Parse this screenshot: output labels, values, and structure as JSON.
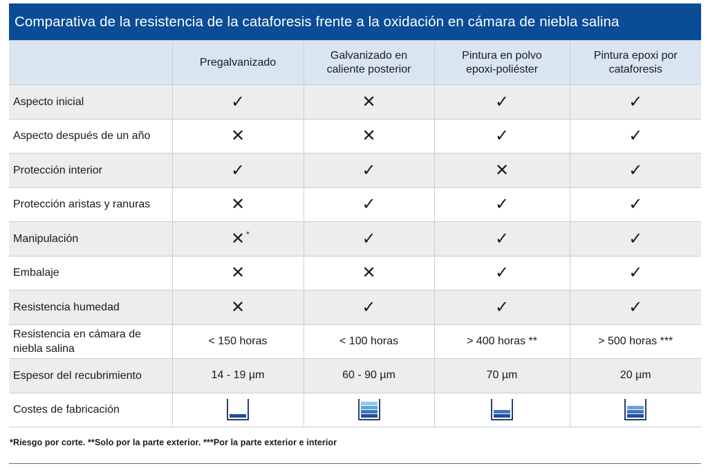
{
  "title": "Comparativa de la resistencia de la cataforesis frente a la oxidación en cámara de niebla salina",
  "columns": [
    "Pregalvanizado",
    "Galvanizado en caliente posterior",
    "Pintura en polvo epoxi-poliéster",
    "Pintura epoxi por cataforesis"
  ],
  "symbols": {
    "yes": "✓",
    "no": "✕"
  },
  "rows": [
    {
      "label": "Aspecto inicial",
      "cells": [
        "✓",
        "✕",
        "✓",
        "✓"
      ]
    },
    {
      "label": "Aspecto después de un año",
      "cells": [
        "✕",
        "✕",
        "✓",
        "✓"
      ]
    },
    {
      "label": "Protección interior",
      "cells": [
        "✓",
        "✓",
        "✕",
        "✓"
      ]
    },
    {
      "label": "Protección aristas y ranuras",
      "cells": [
        "✕",
        "✓",
        "✓",
        "✓"
      ]
    },
    {
      "label": "Manipulación",
      "cells": [
        "✕",
        "✓",
        "✓",
        "✓"
      ],
      "note_marker": "*"
    },
    {
      "label": "Embalaje",
      "cells": [
        "✕",
        "✕",
        "✓",
        "✓"
      ]
    },
    {
      "label": "Resistencia humedad",
      "cells": [
        "✕",
        "✓",
        "✓",
        "✓"
      ]
    },
    {
      "label": "Resistencia en cámara de niebla salina",
      "cells": [
        "< 150 horas",
        "< 100 horas",
        "> 400 horas **",
        "> 500 horas ***"
      ]
    },
    {
      "label": "Espesor del recubrimiento",
      "cells": [
        "14 - 19 µm",
        "60 - 90 µm",
        "70 µm",
        "20 µm"
      ]
    }
  ],
  "cost_row": {
    "label": "Costes de fabricación",
    "levels": [
      1,
      4,
      2,
      3
    ],
    "colors": [
      "#1f4e9a",
      "#3f74c2",
      "#63a2dc",
      "#8ec8ec"
    ]
  },
  "footnote": "*Riesgo por corte.  **Solo por la parte exterior.  ***Por la parte exterior e interior",
  "colors": {
    "title_bg": "#0b4c97",
    "header_bg": "#d9e6f2",
    "row_alt": "#ededed"
  }
}
